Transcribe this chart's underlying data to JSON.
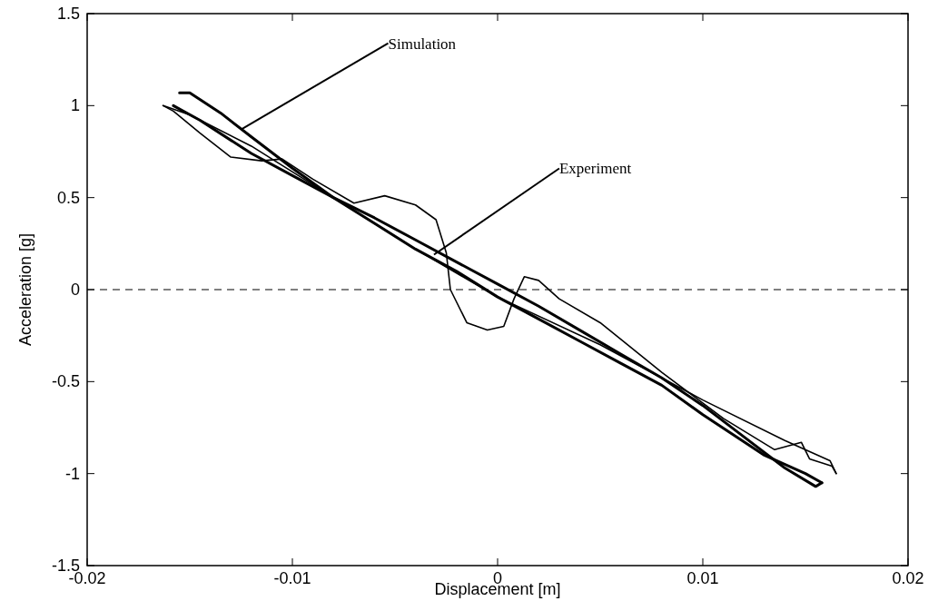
{
  "chart_data": {
    "type": "line",
    "xlabel": "Displacement [m]",
    "ylabel": "Acceleration [g]",
    "xlim": [
      -0.02,
      0.02
    ],
    "xticks": [
      -0.02,
      -0.01,
      0,
      0.01,
      0.02
    ],
    "ylim": [
      -1.5,
      1.5
    ],
    "yticks": [
      -1.5,
      -1,
      -0.5,
      0,
      0.5,
      1,
      1.5
    ],
    "grid": false,
    "marker": "none",
    "ref_lines": [
      {
        "axis": "y",
        "value": 0,
        "line_style": "dashed",
        "color": "#000000"
      }
    ],
    "annotations": [
      {
        "text": "Simulation",
        "x": -0.0125,
        "y": 0.87
      },
      {
        "text": "Experiment",
        "x": -0.0031,
        "y": 0.19
      }
    ],
    "series": [
      {
        "color": "#000000",
        "line_style": "solid",
        "x": [
          -0.0155,
          -0.015,
          -0.0135,
          -0.012,
          -0.01,
          -0.008,
          -0.006,
          -0.004,
          -0.002,
          0,
          0.002,
          0.004,
          0.006,
          0.008,
          0.01,
          0.012,
          0.014,
          0.0155,
          0.0158
        ],
        "values": [
          1.07,
          1.07,
          0.96,
          0.83,
          0.66,
          0.5,
          0.39,
          0.27,
          0.15,
          0.03,
          -0.09,
          -0.22,
          -0.35,
          -0.48,
          -0.63,
          -0.8,
          -0.97,
          -1.07,
          -1.05
        ]
      },
      {
        "color": "#000000",
        "line_style": "solid",
        "x": [
          -0.0158,
          -0.0145,
          -0.012,
          -0.01,
          -0.008,
          -0.006,
          -0.004,
          -0.002,
          0,
          0.002,
          0.004,
          0.006,
          0.008,
          0.01,
          0.013,
          0.015,
          0.0158
        ],
        "values": [
          1.0,
          0.92,
          0.74,
          0.62,
          0.5,
          0.36,
          0.22,
          0.1,
          -0.04,
          -0.16,
          -0.28,
          -0.4,
          -0.52,
          -0.68,
          -0.9,
          -1.0,
          -1.05
        ]
      },
      {
        "color": "#000000",
        "x": [
          -0.0163,
          -0.0158,
          -0.0145,
          -0.013,
          -0.0115,
          -0.0105,
          -0.009,
          -0.007,
          -0.0055,
          -0.004,
          -0.003,
          -0.0025,
          -0.0023,
          -0.0015,
          -0.0005,
          0.0003,
          0.0008,
          0.0013,
          0.002,
          0.003,
          0.005,
          0.008,
          0.011,
          0.0135,
          0.0148,
          0.0152,
          0.0163,
          0.0165
        ],
        "values": [
          1.0,
          0.97,
          0.85,
          0.72,
          0.7,
          0.71,
          0.6,
          0.47,
          0.51,
          0.46,
          0.38,
          0.2,
          0.0,
          -0.18,
          -0.22,
          -0.2,
          -0.05,
          0.07,
          0.05,
          -0.05,
          -0.18,
          -0.45,
          -0.7,
          -0.87,
          -0.83,
          -0.92,
          -0.96,
          -1.0
        ]
      },
      {
        "color": "#000000",
        "x": [
          -0.0163,
          -0.015,
          -0.012,
          -0.008,
          -0.004,
          0,
          0.005,
          0.01,
          0.014,
          0.0162,
          0.0165
        ],
        "values": [
          1.0,
          0.95,
          0.78,
          0.5,
          0.22,
          -0.04,
          -0.3,
          -0.6,
          -0.82,
          -0.93,
          -1.0
        ]
      }
    ]
  }
}
